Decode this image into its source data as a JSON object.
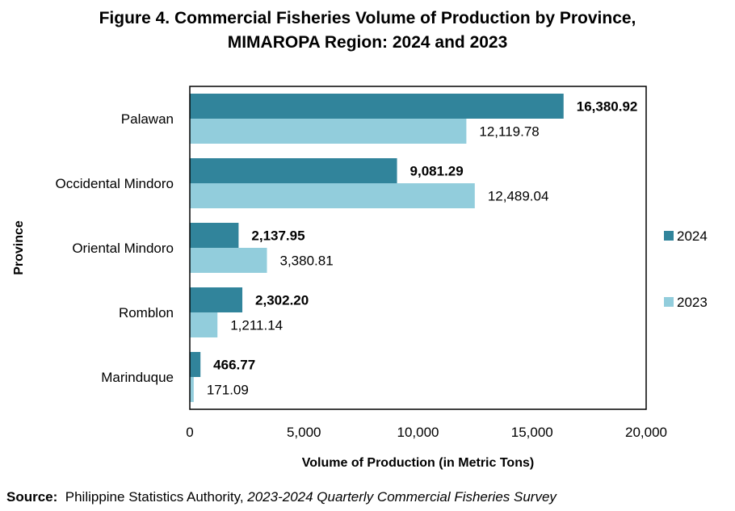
{
  "title_line1": "Figure 4. Commercial Fisheries Volume of Production by Province,",
  "title_line2": "MIMAROPA Region: 2024 and 2023",
  "source": {
    "label": "Source:",
    "agency": "Philippine Statistics Authority, ",
    "document": "2023-2024 Quarterly Commercial Fisheries Survey"
  },
  "colors": {
    "series_2024": "#31849b",
    "series_2023": "#92cddc"
  },
  "chart_data": {
    "type": "bar",
    "orientation": "horizontal",
    "categories": [
      "Palawan",
      "Occidental Mindoro",
      "Oriental Mindoro",
      "Romblon",
      "Marinduque"
    ],
    "series": [
      {
        "name": "2024",
        "values": [
          16380.92,
          9081.29,
          2137.95,
          2302.2,
          466.77
        ],
        "labels": [
          "16,380.92",
          "9,081.29",
          "2,137.95",
          "2,302.20",
          "466.77"
        ]
      },
      {
        "name": "2023",
        "values": [
          12119.78,
          12489.04,
          3380.81,
          1211.14,
          171.09
        ],
        "labels": [
          "12,119.78",
          "12,489.04",
          "3,380.81",
          "1,211.14",
          "171.09"
        ]
      }
    ],
    "xlabel": "Volume of Production (in Metric Tons)",
    "ylabel": "Province",
    "xlim": [
      0,
      20000
    ],
    "xticks": [
      0,
      5000,
      10000,
      15000,
      20000
    ],
    "xtick_labels": [
      "0",
      "5,000",
      "10,000",
      "15,000",
      "20,000"
    ],
    "legend_position": "right",
    "grid": false
  }
}
